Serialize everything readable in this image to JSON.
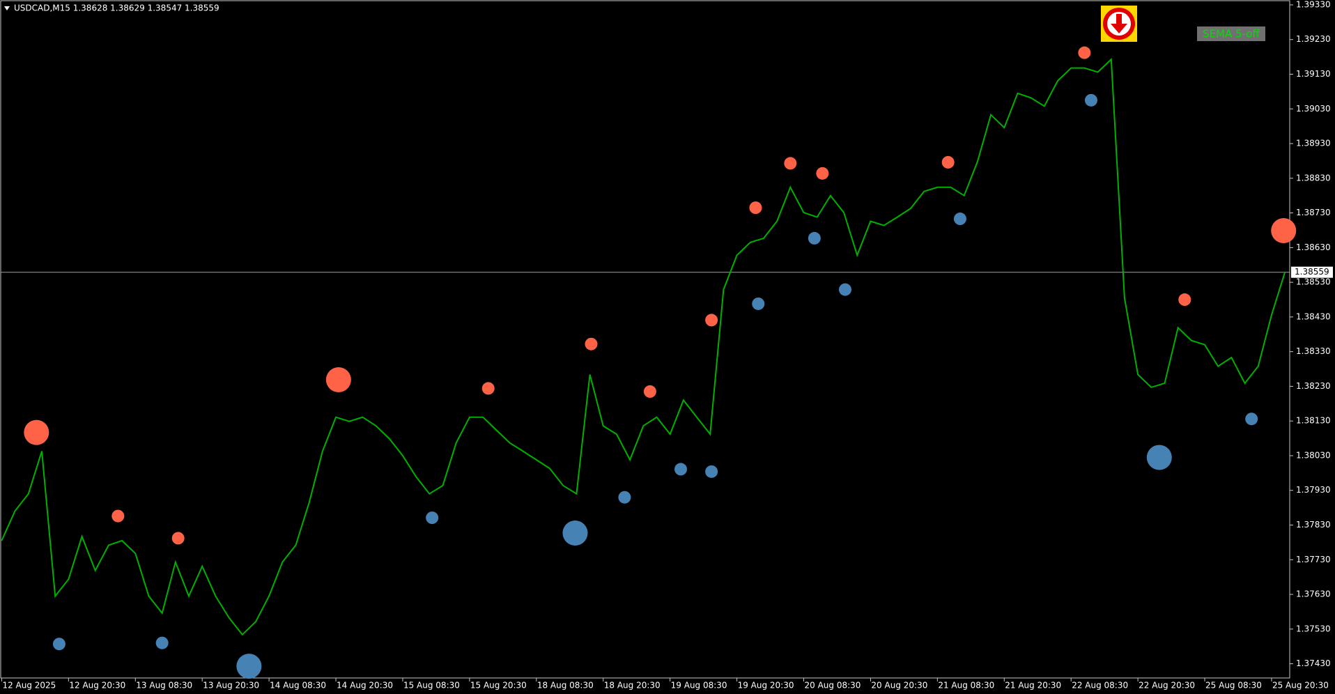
{
  "chart_data": {
    "type": "line",
    "title": "USDCAD,M15  1.38628 1.38629 1.38547 1.38559",
    "button": "SEMA 5-off",
    "categories": [
      "12 Aug 2025",
      null,
      null,
      null,
      null,
      "12 Aug 20:30",
      null,
      null,
      null,
      null,
      "13 Aug 08:30",
      null,
      null,
      null,
      null,
      "13 Aug 20:30",
      null,
      null,
      null,
      null,
      "14 Aug 08:30",
      null,
      null,
      null,
      null,
      "14 Aug 20:30",
      null,
      null,
      null,
      null,
      "15 Aug 08:30",
      null,
      null,
      null,
      null,
      "15 Aug 20:30",
      null,
      null,
      null,
      null,
      "18 Aug 08:30",
      null,
      null,
      null,
      null,
      "18 Aug 20:30",
      null,
      null,
      null,
      null,
      "19 Aug 08:30",
      null,
      null,
      null,
      null,
      "19 Aug 20:30",
      null,
      null,
      null,
      null,
      "20 Aug 08:30",
      null,
      null,
      null,
      null,
      "20 Aug 20:30",
      null,
      null,
      null,
      null,
      "21 Aug 08:30",
      null,
      null,
      null,
      null,
      "21 Aug 20:30",
      null,
      null,
      null,
      null,
      "22 Aug 08:30",
      null,
      null,
      null,
      null,
      "22 Aug 20:30",
      null,
      null,
      null,
      null,
      "25 Aug 08:30",
      null,
      null,
      null,
      null,
      "25 Aug 20:30",
      null
    ],
    "series": [
      {
        "color": "#00b000",
        "values": [
          1.37785,
          1.37871,
          1.3792,
          1.38043,
          1.37625,
          1.37674,
          1.37797,
          1.37699,
          1.37772,
          1.37785,
          1.37748,
          1.37625,
          1.37576,
          1.37723,
          1.37625,
          1.37711,
          1.37625,
          1.37563,
          1.37514,
          1.37551,
          1.37625,
          1.37723,
          1.37772,
          1.37895,
          1.38043,
          1.38141,
          1.38129,
          1.38141,
          1.38116,
          1.38079,
          1.3803,
          1.37969,
          1.3792,
          1.37944,
          1.38067,
          1.38141,
          1.38141,
          1.38104,
          1.38067,
          1.38043,
          1.38018,
          1.37993,
          1.37944,
          1.3792,
          1.38264,
          1.38116,
          1.38092,
          1.38018,
          1.38116,
          1.38141,
          1.38092,
          1.3819,
          1.38141,
          1.38092,
          1.38509,
          1.38608,
          1.38645,
          1.38657,
          1.38706,
          1.38804,
          1.38731,
          1.38718,
          1.3878,
          1.38731,
          1.38608,
          1.38706,
          1.38694,
          1.38718,
          1.38743,
          1.38792,
          1.38804,
          1.38804,
          1.3878,
          1.38878,
          1.39013,
          1.38976,
          1.39075,
          1.39062,
          1.39038,
          1.39111,
          1.39148,
          1.39148,
          1.39136,
          1.39173,
          1.38485,
          1.38264,
          1.38227,
          1.38239,
          1.38399,
          1.38362,
          1.3835,
          1.38288,
          1.38313,
          1.38239,
          1.38288,
          1.38436,
          1.38559
        ]
      }
    ],
    "markers": [
      {
        "color": "#ff6347",
        "x": [
          2.6,
          8.7,
          13.2,
          25.2,
          36.4,
          44.1,
          48.5,
          53.1,
          56.4,
          59.0,
          61.4,
          70.8,
          81.0,
          88.5,
          95.9
        ],
        "values": [
          1.38097,
          1.37856,
          1.37792,
          1.38249,
          1.38224,
          1.38352,
          1.38215,
          1.38421,
          1.38745,
          1.38873,
          1.38844,
          1.38876,
          1.39192,
          1.3848,
          1.38679
        ],
        "sizes": [
          2,
          1,
          1,
          2,
          1,
          1,
          1,
          1,
          1,
          1,
          1,
          1,
          1,
          1,
          2
        ]
      },
      {
        "color": "#4682b4",
        "x": [
          4.3,
          12.0,
          18.5,
          32.2,
          42.9,
          46.6,
          50.8,
          53.1,
          56.6,
          60.8,
          63.1,
          71.7,
          81.5,
          86.6,
          93.5
        ],
        "values": [
          1.37487,
          1.3749,
          1.37423,
          1.37851,
          1.37807,
          1.3791,
          1.37991,
          1.37984,
          1.38468,
          1.38657,
          1.38509,
          1.38713,
          1.39055,
          1.38025,
          1.38136
        ],
        "sizes": [
          1,
          1,
          2,
          1,
          2,
          1,
          1,
          1,
          1,
          1,
          1,
          1,
          1,
          2,
          1
        ]
      }
    ],
    "current_price": 1.38559,
    "ylim": [
      1.37389,
      1.39342
    ],
    "yticks": [
      {
        "value": 1.3933,
        "label": "1.39330"
      },
      {
        "value": 1.3923,
        "label": "1.39230"
      },
      {
        "value": 1.3913,
        "label": "1.39130"
      },
      {
        "value": 1.3903,
        "label": "1.39030"
      },
      {
        "value": 1.3893,
        "label": "1.38930"
      },
      {
        "value": 1.3883,
        "label": "1.38830"
      },
      {
        "value": 1.3873,
        "label": "1.38730"
      },
      {
        "value": 1.3863,
        "label": "1.38630"
      },
      {
        "value": 1.3853,
        "label": "1.38530"
      },
      {
        "value": 1.3843,
        "label": "1.38430"
      },
      {
        "value": 1.3833,
        "label": "1.38330"
      },
      {
        "value": 1.3823,
        "label": "1.38230"
      },
      {
        "value": 1.3813,
        "label": "1.38130"
      },
      {
        "value": 1.3803,
        "label": "1.38030"
      },
      {
        "value": 1.3793,
        "label": "1.37930"
      },
      {
        "value": 1.3783,
        "label": "1.37830"
      },
      {
        "value": 1.3773,
        "label": "1.37730"
      },
      {
        "value": 1.3763,
        "label": "1.37630"
      },
      {
        "value": 1.3753,
        "label": "1.37530"
      },
      {
        "value": 1.3743,
        "label": "1.37430"
      }
    ]
  }
}
